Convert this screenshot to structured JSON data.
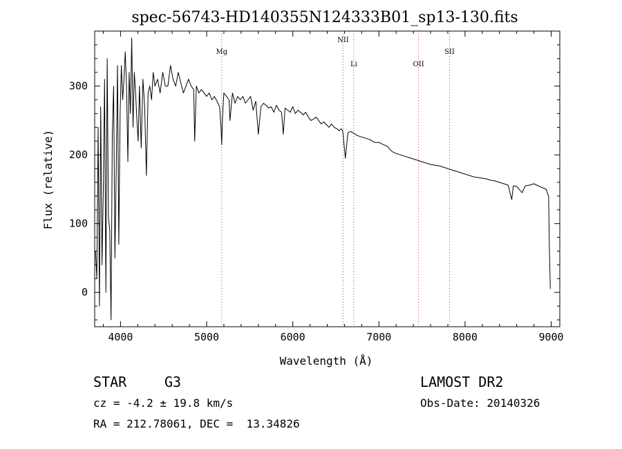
{
  "chart_data": {
    "type": "line",
    "title": "spec-56743-HD140355N124333B01_sp13-130.fits",
    "xlabel": "Wavelength (Å)",
    "ylabel": "Flux (relative)",
    "xlim": [
      3700,
      9100
    ],
    "ylim": [
      -50,
      380
    ],
    "x_ticks": [
      4000,
      5000,
      6000,
      7000,
      8000,
      9000
    ],
    "y_ticks": [
      0,
      100,
      200,
      300
    ],
    "grid": false,
    "line_color": "#000000",
    "marker_color": "#cc3333",
    "spectral_lines": [
      {
        "label": "Mg",
        "wavelength": 5175
      },
      {
        "label": "NII",
        "wavelength": 6584
      },
      {
        "label": "Li",
        "wavelength": 6708
      },
      {
        "label": "OII",
        "wavelength": 7460
      },
      {
        "label": "SII",
        "wavelength": 7820
      }
    ],
    "series": [
      {
        "x": [
          3710,
          3725,
          3740,
          3755,
          3770,
          3785,
          3800,
          3815,
          3830,
          3845,
          3860,
          3875,
          3890,
          3905,
          3920,
          3935,
          3950,
          3965,
          3980,
          3995,
          4010,
          4025,
          4040,
          4055,
          4070,
          4085,
          4100,
          4115,
          4130,
          4145,
          4160,
          4175,
          4190,
          4205,
          4220,
          4240,
          4260,
          4280,
          4300,
          4320,
          4340,
          4360,
          4380,
          4400,
          4430,
          4460,
          4490,
          4520,
          4550,
          4580,
          4610,
          4640,
          4670,
          4700,
          4730,
          4760,
          4790,
          4820,
          4850,
          4861,
          4880,
          4910,
          4940,
          4970,
          5000,
          5030,
          5060,
          5090,
          5120,
          5150,
          5167,
          5175,
          5184,
          5200,
          5230,
          5260,
          5270,
          5300,
          5330,
          5360,
          5390,
          5420,
          5450,
          5480,
          5510,
          5540,
          5570,
          5600,
          5630,
          5660,
          5690,
          5720,
          5750,
          5780,
          5810,
          5840,
          5870,
          5890,
          5910,
          5940,
          5970,
          6000,
          6030,
          6060,
          6090,
          6120,
          6150,
          6180,
          6210,
          6240,
          6270,
          6300,
          6330,
          6360,
          6390,
          6420,
          6450,
          6480,
          6510,
          6540,
          6563,
          6580,
          6610,
          6640,
          6670,
          6700,
          6750,
          6800,
          6850,
          6900,
          6950,
          7000,
          7050,
          7100,
          7150,
          7200,
          7250,
          7300,
          7350,
          7400,
          7450,
          7500,
          7550,
          7600,
          7650,
          7700,
          7750,
          7800,
          7850,
          7900,
          7950,
          8000,
          8050,
          8100,
          8150,
          8200,
          8250,
          8300,
          8350,
          8400,
          8450,
          8500,
          8542,
          8560,
          8600,
          8662,
          8700,
          8750,
          8800,
          8850,
          8900,
          8940,
          8970,
          8980,
          8990
        ],
        "y": [
          60,
          20,
          240,
          -20,
          270,
          40,
          150,
          310,
          0,
          340,
          110,
          90,
          -40,
          230,
          300,
          50,
          180,
          330,
          70,
          260,
          330,
          280,
          310,
          350,
          300,
          190,
          320,
          260,
          370,
          240,
          320,
          290,
          250,
          220,
          300,
          210,
          310,
          270,
          170,
          290,
          300,
          280,
          320,
          300,
          310,
          290,
          320,
          300,
          300,
          330,
          310,
          300,
          320,
          305,
          290,
          300,
          310,
          300,
          295,
          220,
          300,
          290,
          295,
          290,
          285,
          290,
          280,
          285,
          278,
          270,
          240,
          215,
          255,
          290,
          285,
          280,
          250,
          290,
          275,
          285,
          280,
          285,
          275,
          280,
          285,
          265,
          278,
          230,
          270,
          275,
          272,
          268,
          270,
          262,
          272,
          265,
          262,
          230,
          268,
          265,
          262,
          270,
          260,
          265,
          262,
          258,
          262,
          255,
          250,
          252,
          255,
          250,
          245,
          248,
          244,
          240,
          245,
          240,
          238,
          235,
          238,
          235,
          195,
          232,
          234,
          232,
          228,
          226,
          224,
          222,
          218,
          218,
          215,
          212,
          205,
          202,
          200,
          198,
          196,
          194,
          192,
          190,
          188,
          186,
          185,
          184,
          182,
          180,
          178,
          176,
          174,
          172,
          170,
          168,
          167,
          166,
          165,
          163,
          162,
          160,
          158,
          156,
          135,
          155,
          154,
          145,
          155,
          156,
          158,
          155,
          152,
          150,
          140,
          60,
          5
        ]
      }
    ]
  },
  "info": {
    "object_type": "STAR",
    "subclass": "G3",
    "survey": "LAMOST DR2",
    "velocity": "cz = -4.2 ± 19.8 km/s",
    "obs_date": "Obs-Date: 20140326",
    "coordinates": "RA = 212.78061, DEC =  13.34826"
  }
}
